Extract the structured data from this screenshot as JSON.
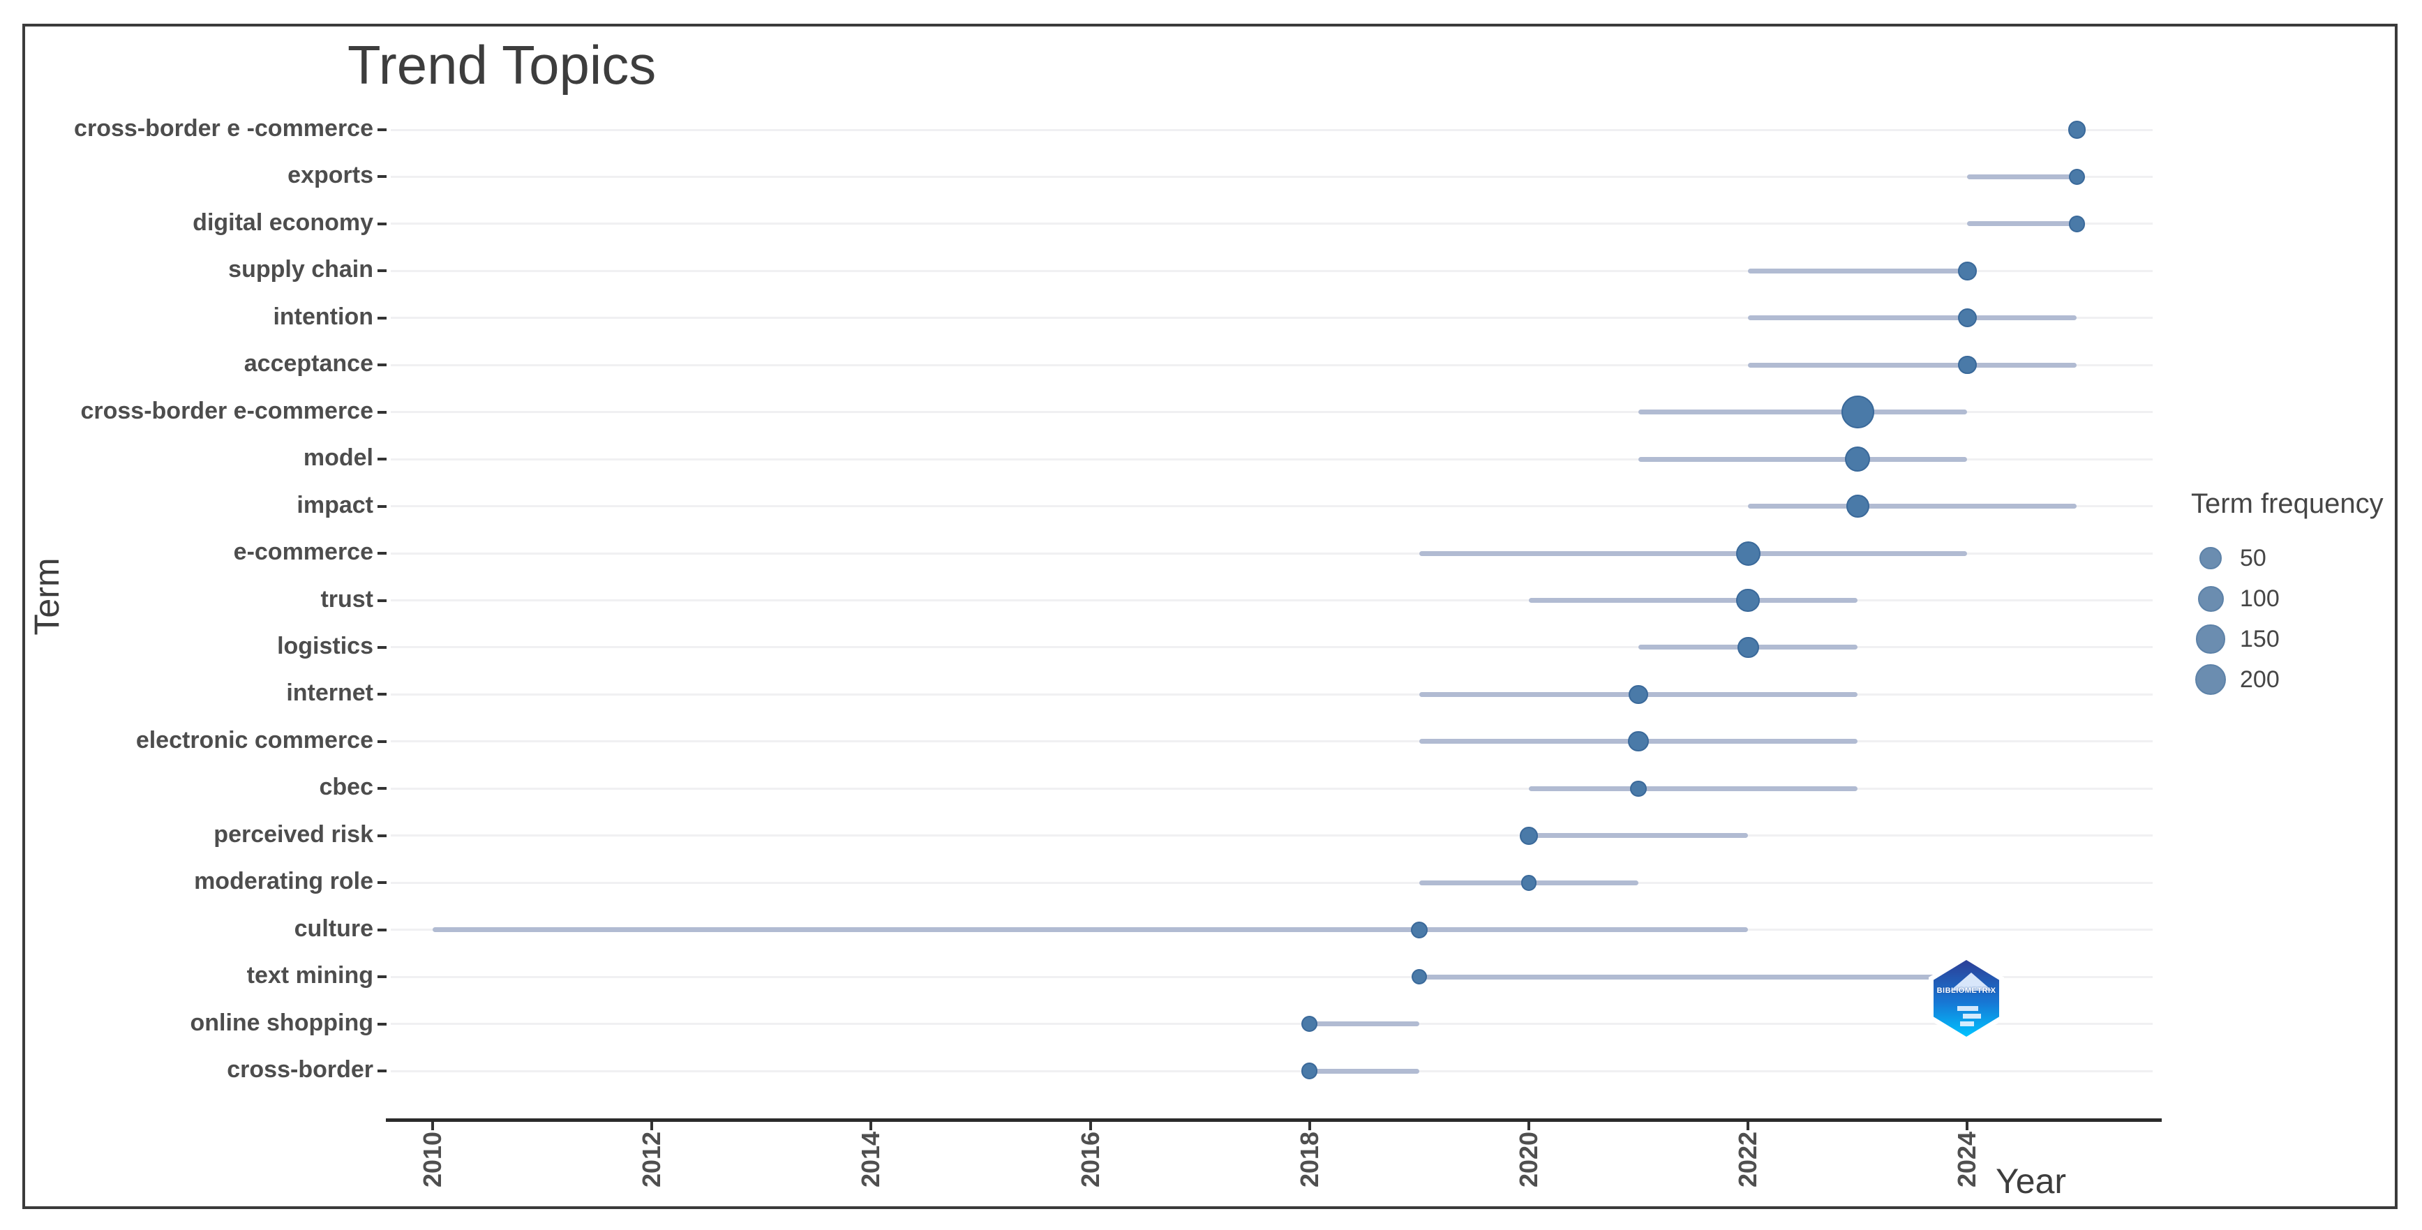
{
  "title": "Trend Topics",
  "x_axis": {
    "label": "Year",
    "ticks": [
      "2010",
      "2012",
      "2014",
      "2016",
      "2018",
      "2020",
      "2022",
      "2024"
    ]
  },
  "y_axis": {
    "label": "Term"
  },
  "legend": {
    "title": "Term frequency",
    "sizes": [
      "50",
      "100",
      "150",
      "200"
    ]
  },
  "logo": {
    "text": "BIBLIOMETRIX"
  },
  "colors": {
    "dot_fill": "#4a7aa8",
    "dot_edge": "#3a699a",
    "segment": "#b1bbd2",
    "legend_dot_fill": "#6b8db0",
    "legend_dot_edge": "#5d82a8",
    "gridline": "#f0f0f2",
    "axis": "#2b2b2b"
  },
  "chart_data": {
    "type": "scatter",
    "title": "Trend Topics",
    "xlabel": "Year",
    "ylabel": "Term",
    "xlim": [
      2009.6,
      2025.9
    ],
    "x_ticks": [
      2010,
      2012,
      2014,
      2016,
      2018,
      2020,
      2022,
      2024
    ],
    "grid": "horizontal-only",
    "legend_position": "right",
    "size_legend": {
      "title": "Term frequency",
      "values": [
        50,
        100,
        150,
        200
      ]
    },
    "terms": [
      {
        "term": "cross-border e -commerce",
        "freq": 15,
        "year_q1": 2025,
        "year_med": 2025,
        "year_q3": 2025
      },
      {
        "term": "exports",
        "freq": 8,
        "year_q1": 2024,
        "year_med": 2025,
        "year_q3": 2025
      },
      {
        "term": "digital economy",
        "freq": 8,
        "year_q1": 2024,
        "year_med": 2025,
        "year_q3": 2025
      },
      {
        "term": "supply chain",
        "freq": 20,
        "year_q1": 2022,
        "year_med": 2024,
        "year_q3": 2024
      },
      {
        "term": "intention",
        "freq": 22,
        "year_q1": 2022,
        "year_med": 2024,
        "year_q3": 2025
      },
      {
        "term": "acceptance",
        "freq": 20,
        "year_q1": 2022,
        "year_med": 2024,
        "year_q3": 2025
      },
      {
        "term": "cross-border e-commerce",
        "freq": 230,
        "year_q1": 2021,
        "year_med": 2023,
        "year_q3": 2024
      },
      {
        "term": "model",
        "freq": 90,
        "year_q1": 2021,
        "year_med": 2023,
        "year_q3": 2024
      },
      {
        "term": "impact",
        "freq": 60,
        "year_q1": 2022,
        "year_med": 2023,
        "year_q3": 2025
      },
      {
        "term": "e-commerce",
        "freq": 80,
        "year_q1": 2019,
        "year_med": 2022,
        "year_q3": 2024
      },
      {
        "term": "trust",
        "freq": 70,
        "year_q1": 2020,
        "year_med": 2022,
        "year_q3": 2023
      },
      {
        "term": "logistics",
        "freq": 45,
        "year_q1": 2021,
        "year_med": 2022,
        "year_q3": 2023
      },
      {
        "term": "internet",
        "freq": 25,
        "year_q1": 2019,
        "year_med": 2021,
        "year_q3": 2023
      },
      {
        "term": "electronic commerce",
        "freq": 35,
        "year_q1": 2019,
        "year_med": 2021,
        "year_q3": 2023
      },
      {
        "term": "cbec",
        "freq": 8,
        "year_q1": 2020,
        "year_med": 2021,
        "year_q3": 2023
      },
      {
        "term": "perceived risk",
        "freq": 16,
        "year_q1": 2020,
        "year_med": 2020,
        "year_q3": 2022
      },
      {
        "term": "moderating role",
        "freq": 6,
        "year_q1": 2019,
        "year_med": 2020,
        "year_q3": 2021
      },
      {
        "term": "culture",
        "freq": 10,
        "year_q1": 2010,
        "year_med": 2019,
        "year_q3": 2022
      },
      {
        "term": "text mining",
        "freq": 6,
        "year_q1": 2019,
        "year_med": 2019,
        "year_q3": 2024
      },
      {
        "term": "online shopping",
        "freq": 7,
        "year_q1": 2018,
        "year_med": 2018,
        "year_q3": 2019
      },
      {
        "term": "cross-border",
        "freq": 8,
        "year_q1": 2018,
        "year_med": 2018,
        "year_q3": 2019
      }
    ]
  }
}
